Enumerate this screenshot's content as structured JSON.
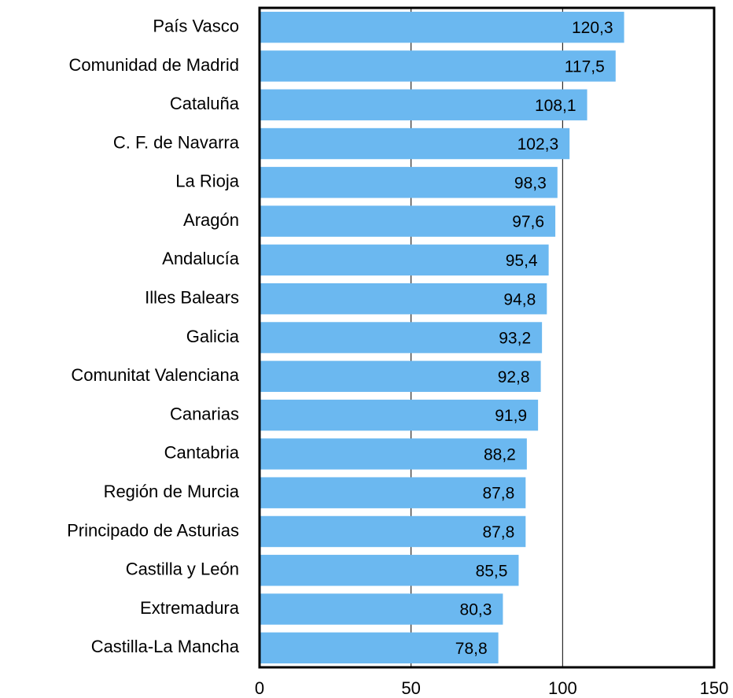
{
  "chart_data": {
    "type": "barh",
    "categories": [
      "País Vasco",
      "Comunidad de Madrid",
      "Cataluña",
      "C. F. de Navarra",
      "La Rioja",
      "Aragón",
      "Andalucía",
      "Illes Balears",
      "Galicia",
      "Comunitat Valenciana",
      "Canarias",
      "Cantabria",
      "Región de Murcia",
      "Principado de Asturias",
      "Castilla y León",
      "Extremadura",
      "Castilla-La Mancha"
    ],
    "values": [
      120.3,
      117.5,
      108.1,
      102.3,
      98.3,
      97.6,
      95.4,
      94.8,
      93.2,
      92.8,
      91.9,
      88.2,
      87.8,
      87.8,
      85.5,
      80.3,
      78.8
    ],
    "value_labels": [
      "120,3",
      "117,5",
      "108,1",
      "102,3",
      "98,3",
      "97,6",
      "95,4",
      "94,8",
      "93,2",
      "92,8",
      "91,9",
      "88,2",
      "87,8",
      "87,8",
      "85,5",
      "80,3",
      "78,8"
    ],
    "color": "#6bb8f0",
    "xlim": [
      0,
      150
    ],
    "xticks": [
      0,
      50,
      100,
      150
    ],
    "grid": true
  }
}
